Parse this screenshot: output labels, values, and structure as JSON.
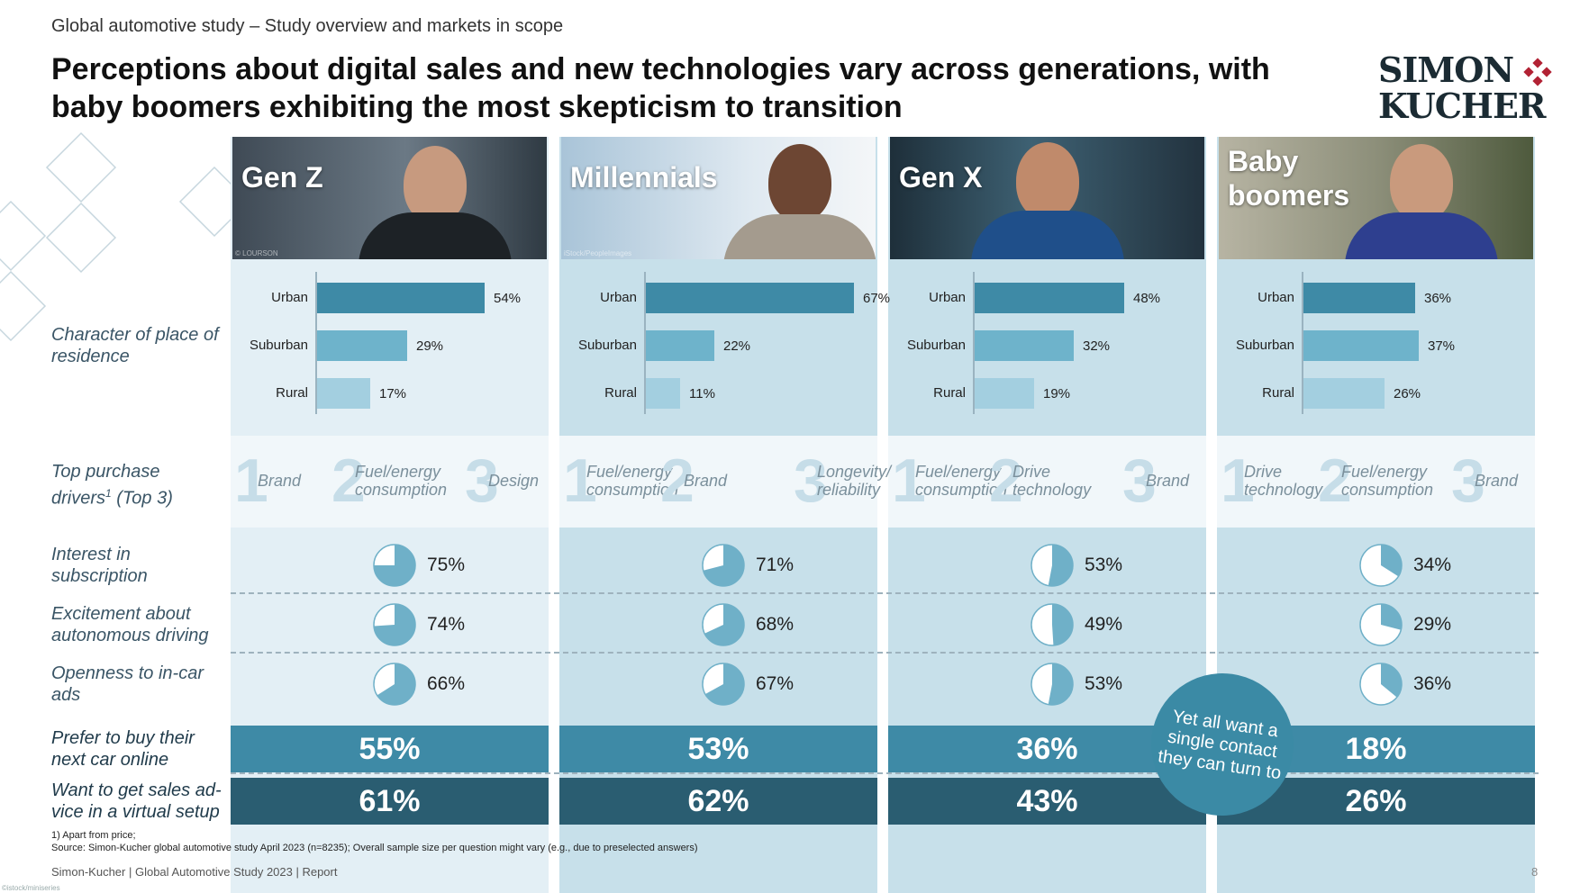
{
  "supertitle": "Global automotive study – Study overview and markets in scope",
  "title": "Perceptions about digital sales and new technologies vary across generations, with baby boomers exhibiting the most skepticism to transition",
  "logo": {
    "line1": "SIMON",
    "line2": "KUCHER",
    "icon": "diamond-dots-icon",
    "color": "#b22234"
  },
  "colors": {
    "bar_dark": "#3e8aa6",
    "bar_light": "#6eb3cb",
    "pie_fill": "#6fb0c8",
    "band_mid": "#3e8aa6",
    "band_dark": "#2a5d71"
  },
  "row_labels": {
    "residence": "Character of place of residence",
    "drivers": "Top purchase drivers",
    "drivers_sup": "1",
    "drivers_suffix": " (Top 3)",
    "subscription": "Interest in subscription",
    "autonomous": "Excitement about autonomous driving",
    "ads": "Openness to in-car ads",
    "online": "Prefer to buy their next car online",
    "virtual": "Want to get sales ad-vice in a virtual setup"
  },
  "generations": [
    {
      "name": "Gen Z",
      "credit": "© LOURSON",
      "residence": [
        {
          "label": "Urban",
          "value": 54
        },
        {
          "label": "Suburban",
          "value": 29
        },
        {
          "label": "Rural",
          "value": 17
        }
      ],
      "drivers": [
        "Brand",
        "Fuel/energy consumption",
        "Design"
      ],
      "subscription": 75,
      "autonomous": 74,
      "ads": 66,
      "online": "55%",
      "virtual": "61%"
    },
    {
      "name": "Millennials",
      "credit": "iStock/PeopleImages",
      "residence": [
        {
          "label": "Urban",
          "value": 67
        },
        {
          "label": "Suburban",
          "value": 22
        },
        {
          "label": "Rural",
          "value": 11
        }
      ],
      "drivers": [
        "Fuel/energy consumption",
        "Brand",
        "Longevity/ reliability"
      ],
      "subscription": 71,
      "autonomous": 68,
      "ads": 67,
      "online": "53%",
      "virtual": "62%"
    },
    {
      "name": "Gen X",
      "credit": "",
      "residence": [
        {
          "label": "Urban",
          "value": 48
        },
        {
          "label": "Suburban",
          "value": 32
        },
        {
          "label": "Rural",
          "value": 19
        }
      ],
      "drivers": [
        "Fuel/energy consumption",
        "Drive technology",
        "Brand"
      ],
      "subscription": 53,
      "autonomous": 49,
      "ads": 53,
      "online": "36%",
      "virtual": "43%"
    },
    {
      "name": "Baby boomers",
      "credit": "",
      "residence": [
        {
          "label": "Urban",
          "value": 36
        },
        {
          "label": "Suburban",
          "value": 37
        },
        {
          "label": "Rural",
          "value": 26
        }
      ],
      "drivers": [
        "Drive technology",
        "Fuel/energy consumption",
        "Brand"
      ],
      "subscription": 34,
      "autonomous": 29,
      "ads": 36,
      "online": "18%",
      "virtual": "26%"
    }
  ],
  "callout": "Yet all want a single contact they can turn to",
  "footnote1": "1) Apart from price;",
  "footnote2": "Source: Simon-Kucher global automotive study April 2023 (n=8235); Overall sample size per question might vary (e.g., due to preselected answers)",
  "footer": "Simon-Kucher  |  Global Automotive Study 2023  |  Report",
  "page_number": "8",
  "image_credit": "©istock/miniseries"
}
